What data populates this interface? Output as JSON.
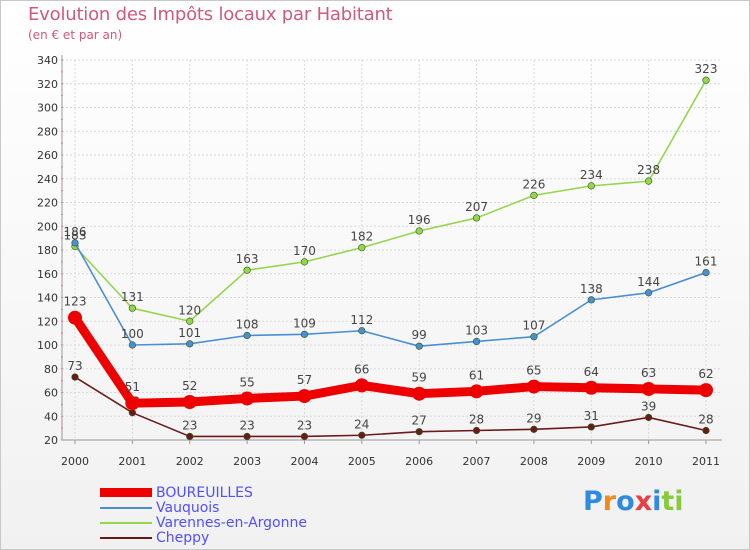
{
  "chart_data": {
    "type": "line",
    "title": "Evolution des Impôts locaux par Habitant",
    "subtitle": "(en € et par an)",
    "categories": [
      "2000",
      "2001",
      "2002",
      "2003",
      "2004",
      "2005",
      "2006",
      "2007",
      "2008",
      "2009",
      "2010",
      "2011"
    ],
    "ylim": [
      20,
      340
    ],
    "yticks": [
      20,
      40,
      60,
      80,
      100,
      120,
      140,
      160,
      180,
      200,
      220,
      240,
      260,
      280,
      300,
      320,
      340
    ],
    "grid": true,
    "legend_position": "bottom-left",
    "series": [
      {
        "name": "Varennes-en-Argonne",
        "color": "#94d64c",
        "values": [
          183,
          131,
          120,
          163,
          170,
          182,
          196,
          207,
          226,
          234,
          238,
          323
        ]
      },
      {
        "name": "Vauquois",
        "color": "#4a8fd4",
        "values": [
          186,
          100,
          101,
          108,
          109,
          112,
          99,
          103,
          107,
          138,
          144,
          161
        ]
      },
      {
        "name": "Cheppy",
        "color": "#6b1a1a",
        "values": [
          73,
          43,
          23,
          23,
          23,
          24,
          27,
          28,
          29,
          31,
          39,
          28
        ]
      },
      {
        "name": "BOUREUILLES",
        "color": "#ee0000",
        "values": [
          123,
          51,
          52,
          55,
          57,
          66,
          59,
          61,
          65,
          64,
          63,
          62
        ]
      }
    ]
  },
  "legend": {
    "items": [
      {
        "label": "BOUREUILLES",
        "color": "#ee0000",
        "thickness": 9
      },
      {
        "label": "Vauquois",
        "color": "#4a8fd4",
        "thickness": 2
      },
      {
        "label": "Varennes-en-Argonne",
        "color": "#94d64c",
        "thickness": 2
      },
      {
        "label": "Cheppy",
        "color": "#6b1a1a",
        "thickness": 2
      }
    ]
  },
  "branding": {
    "logo_text": "Proxiti",
    "logo_colors": [
      "#2e8bdf",
      "#f08a1c",
      "#2e8bdf",
      "#e84040",
      "#2e8bdf",
      "#8ac83c",
      "#8ac83c"
    ]
  }
}
